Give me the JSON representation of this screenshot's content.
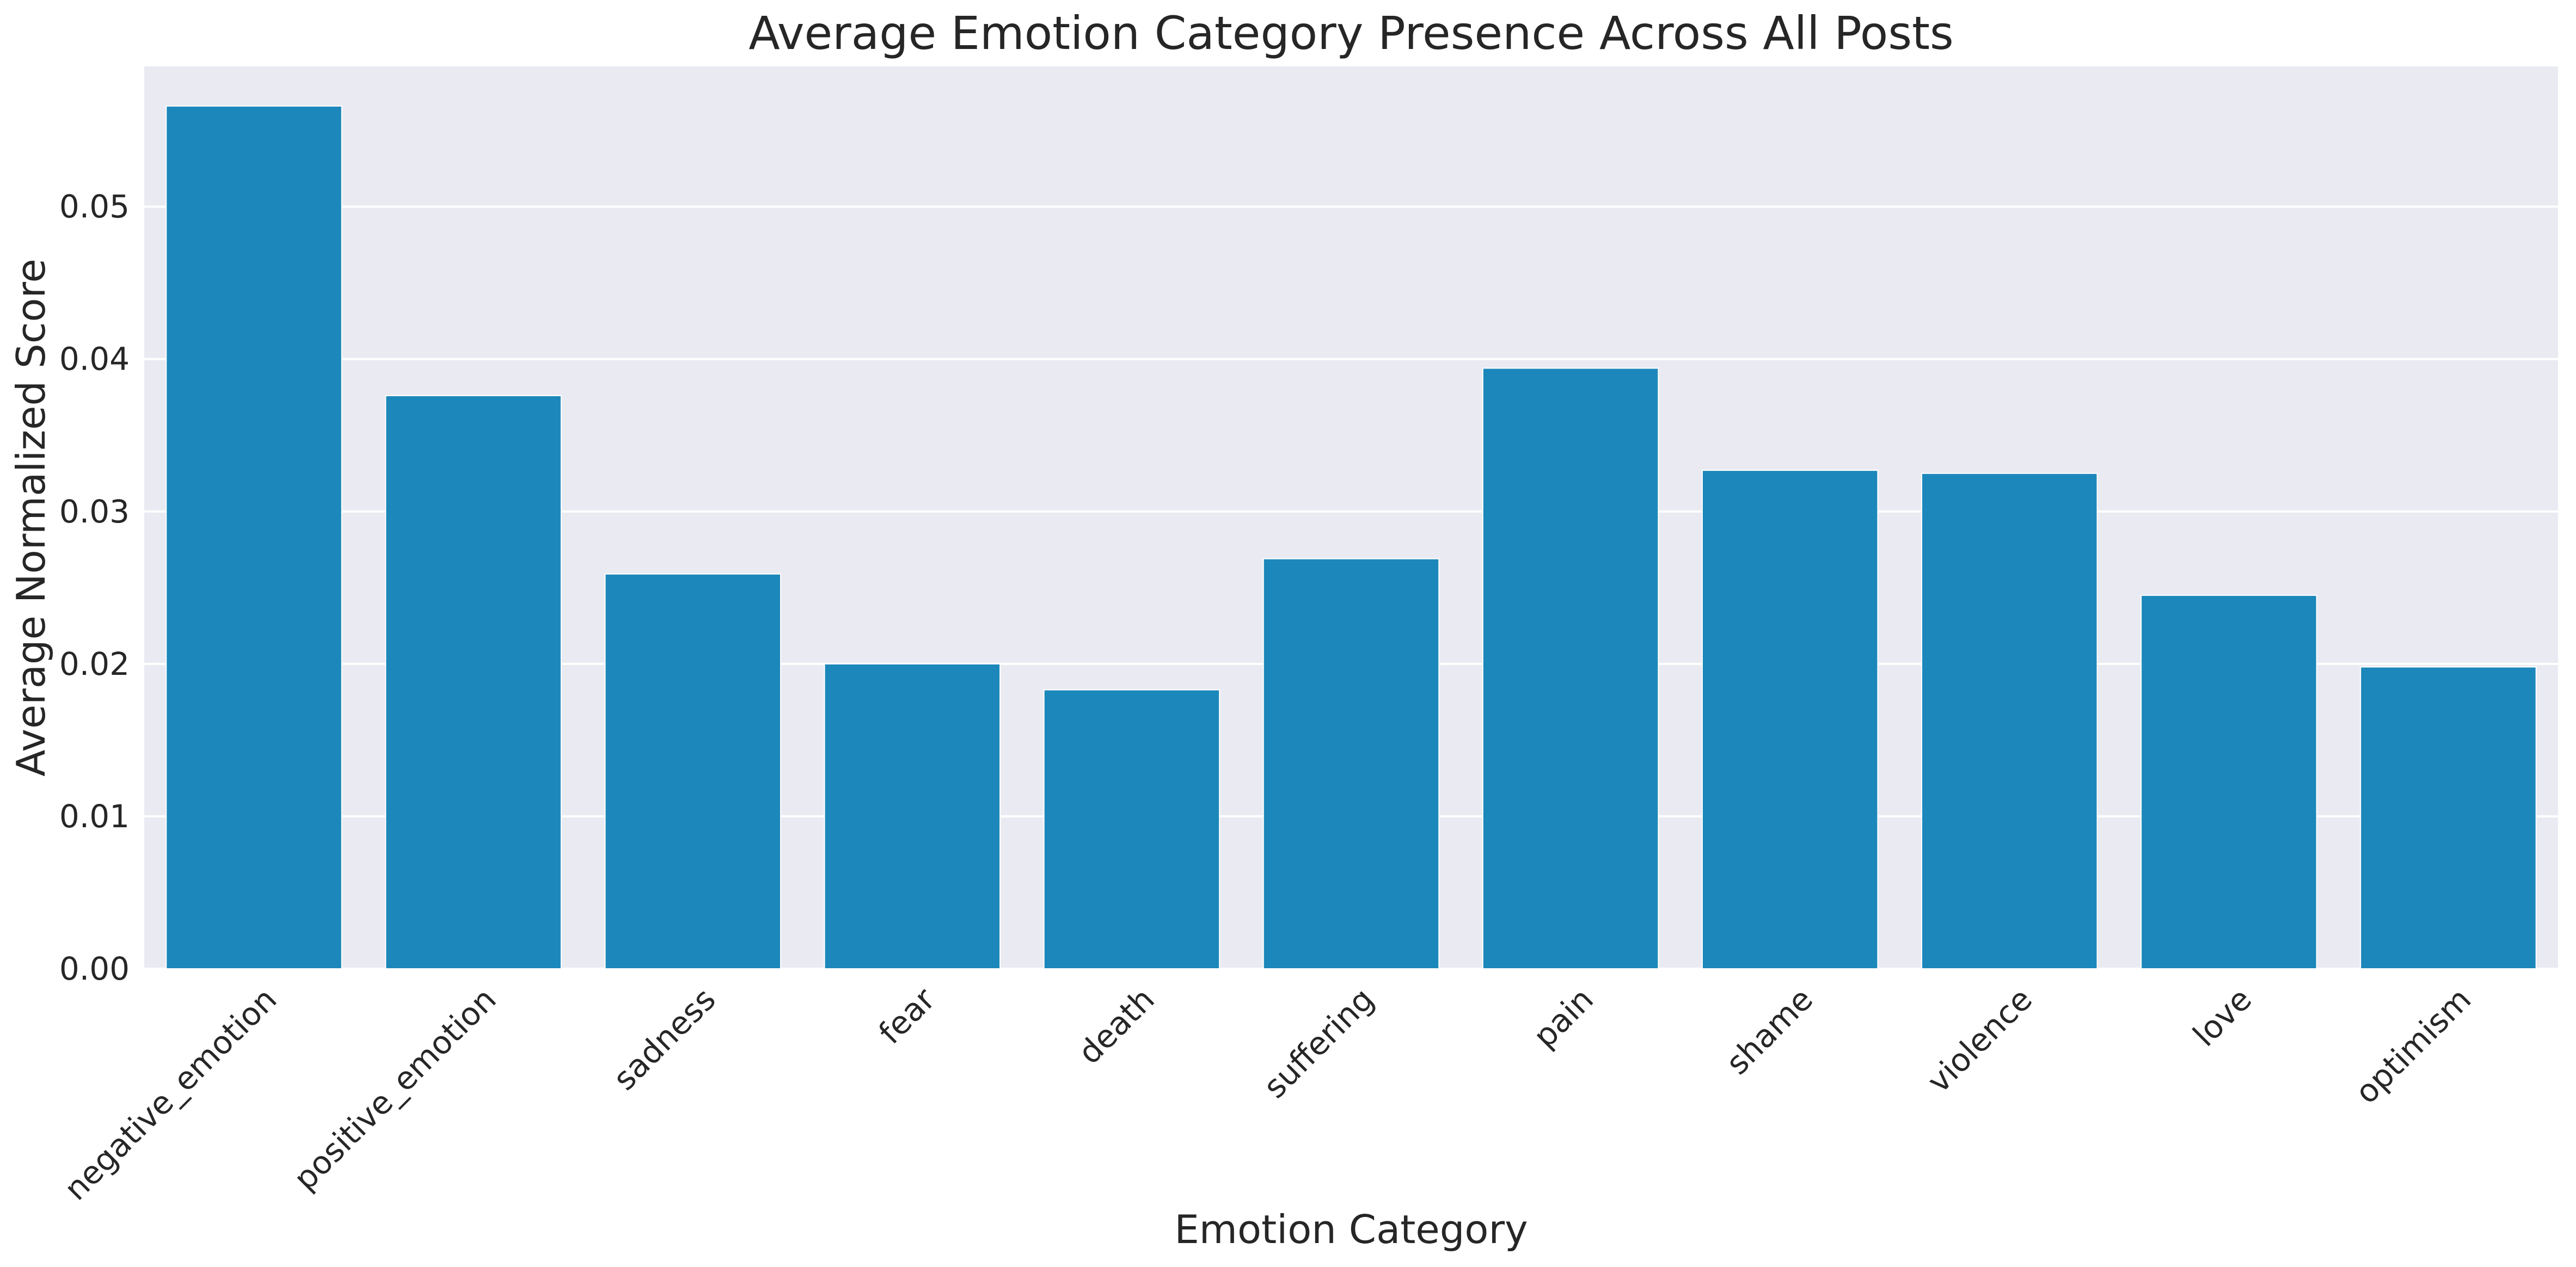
{
  "chart_data": {
    "type": "bar",
    "title": "Average Emotion Category Presence Across All Posts",
    "xlabel": "Emotion Category",
    "ylabel": "Average Normalized Score",
    "categories": [
      "negative_emotion",
      "positive_emotion",
      "sadness",
      "fear",
      "death",
      "suffering",
      "pain",
      "shame",
      "violence",
      "love",
      "optimism"
    ],
    "values": [
      0.0566,
      0.0376,
      0.0259,
      0.02,
      0.0183,
      0.0269,
      0.0394,
      0.0327,
      0.0325,
      0.0245,
      0.0198
    ],
    "ylim": [
      0,
      0.0592
    ],
    "yticks": [
      "0.00",
      "0.01",
      "0.02",
      "0.03",
      "0.04",
      "0.05"
    ],
    "grid": true,
    "bar_color": "#1c87ba",
    "plot_background": "#eaeaf2",
    "grid_color": "#ffffff"
  }
}
